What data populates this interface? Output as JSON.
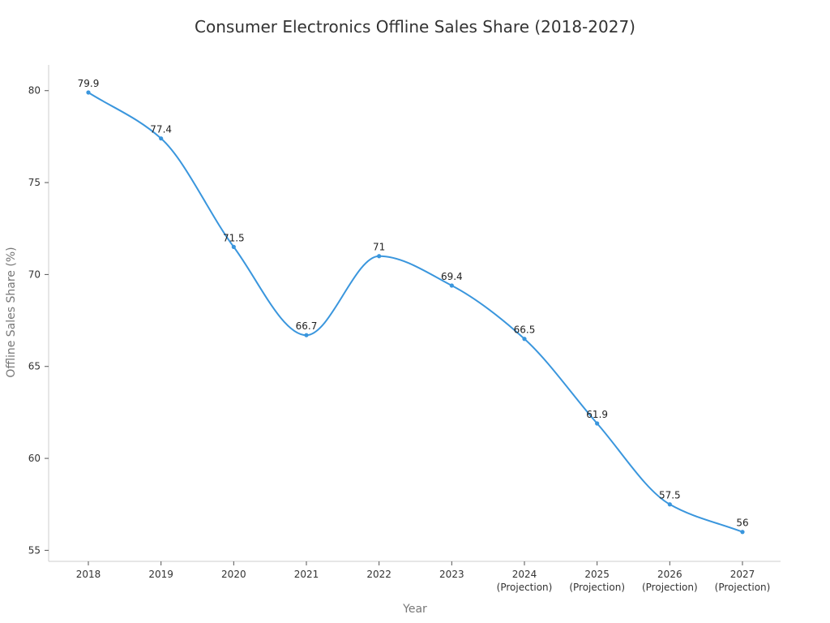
{
  "chart_data": {
    "type": "line",
    "title": "Consumer Electronics Offline Sales Share (2018-2027)",
    "xlabel": "Year",
    "ylabel": "Offline Sales Share (%)",
    "categories": [
      {
        "year": "2018",
        "note": ""
      },
      {
        "year": "2019",
        "note": ""
      },
      {
        "year": "2020",
        "note": ""
      },
      {
        "year": "2021",
        "note": ""
      },
      {
        "year": "2022",
        "note": ""
      },
      {
        "year": "2023",
        "note": ""
      },
      {
        "year": "2024",
        "note": "(Projection)"
      },
      {
        "year": "2025",
        "note": "(Projection)"
      },
      {
        "year": "2026",
        "note": "(Projection)"
      },
      {
        "year": "2027",
        "note": "(Projection)"
      }
    ],
    "series": [
      {
        "name": "Offline Sales Share",
        "values": [
          79.9,
          77.4,
          71.5,
          66.7,
          71,
          69.4,
          66.5,
          61.9,
          57.5,
          56
        ],
        "labels": [
          "79.9",
          "77.4",
          "71.5",
          "66.7",
          "71",
          "69.4",
          "66.5",
          "61.9",
          "57.5",
          "56"
        ]
      }
    ],
    "yticks": [
      "55",
      "60",
      "65",
      "70",
      "75",
      "80"
    ],
    "ylim": [
      54.4,
      81.4
    ],
    "grid": false,
    "line_color": "#3a96dd"
  }
}
